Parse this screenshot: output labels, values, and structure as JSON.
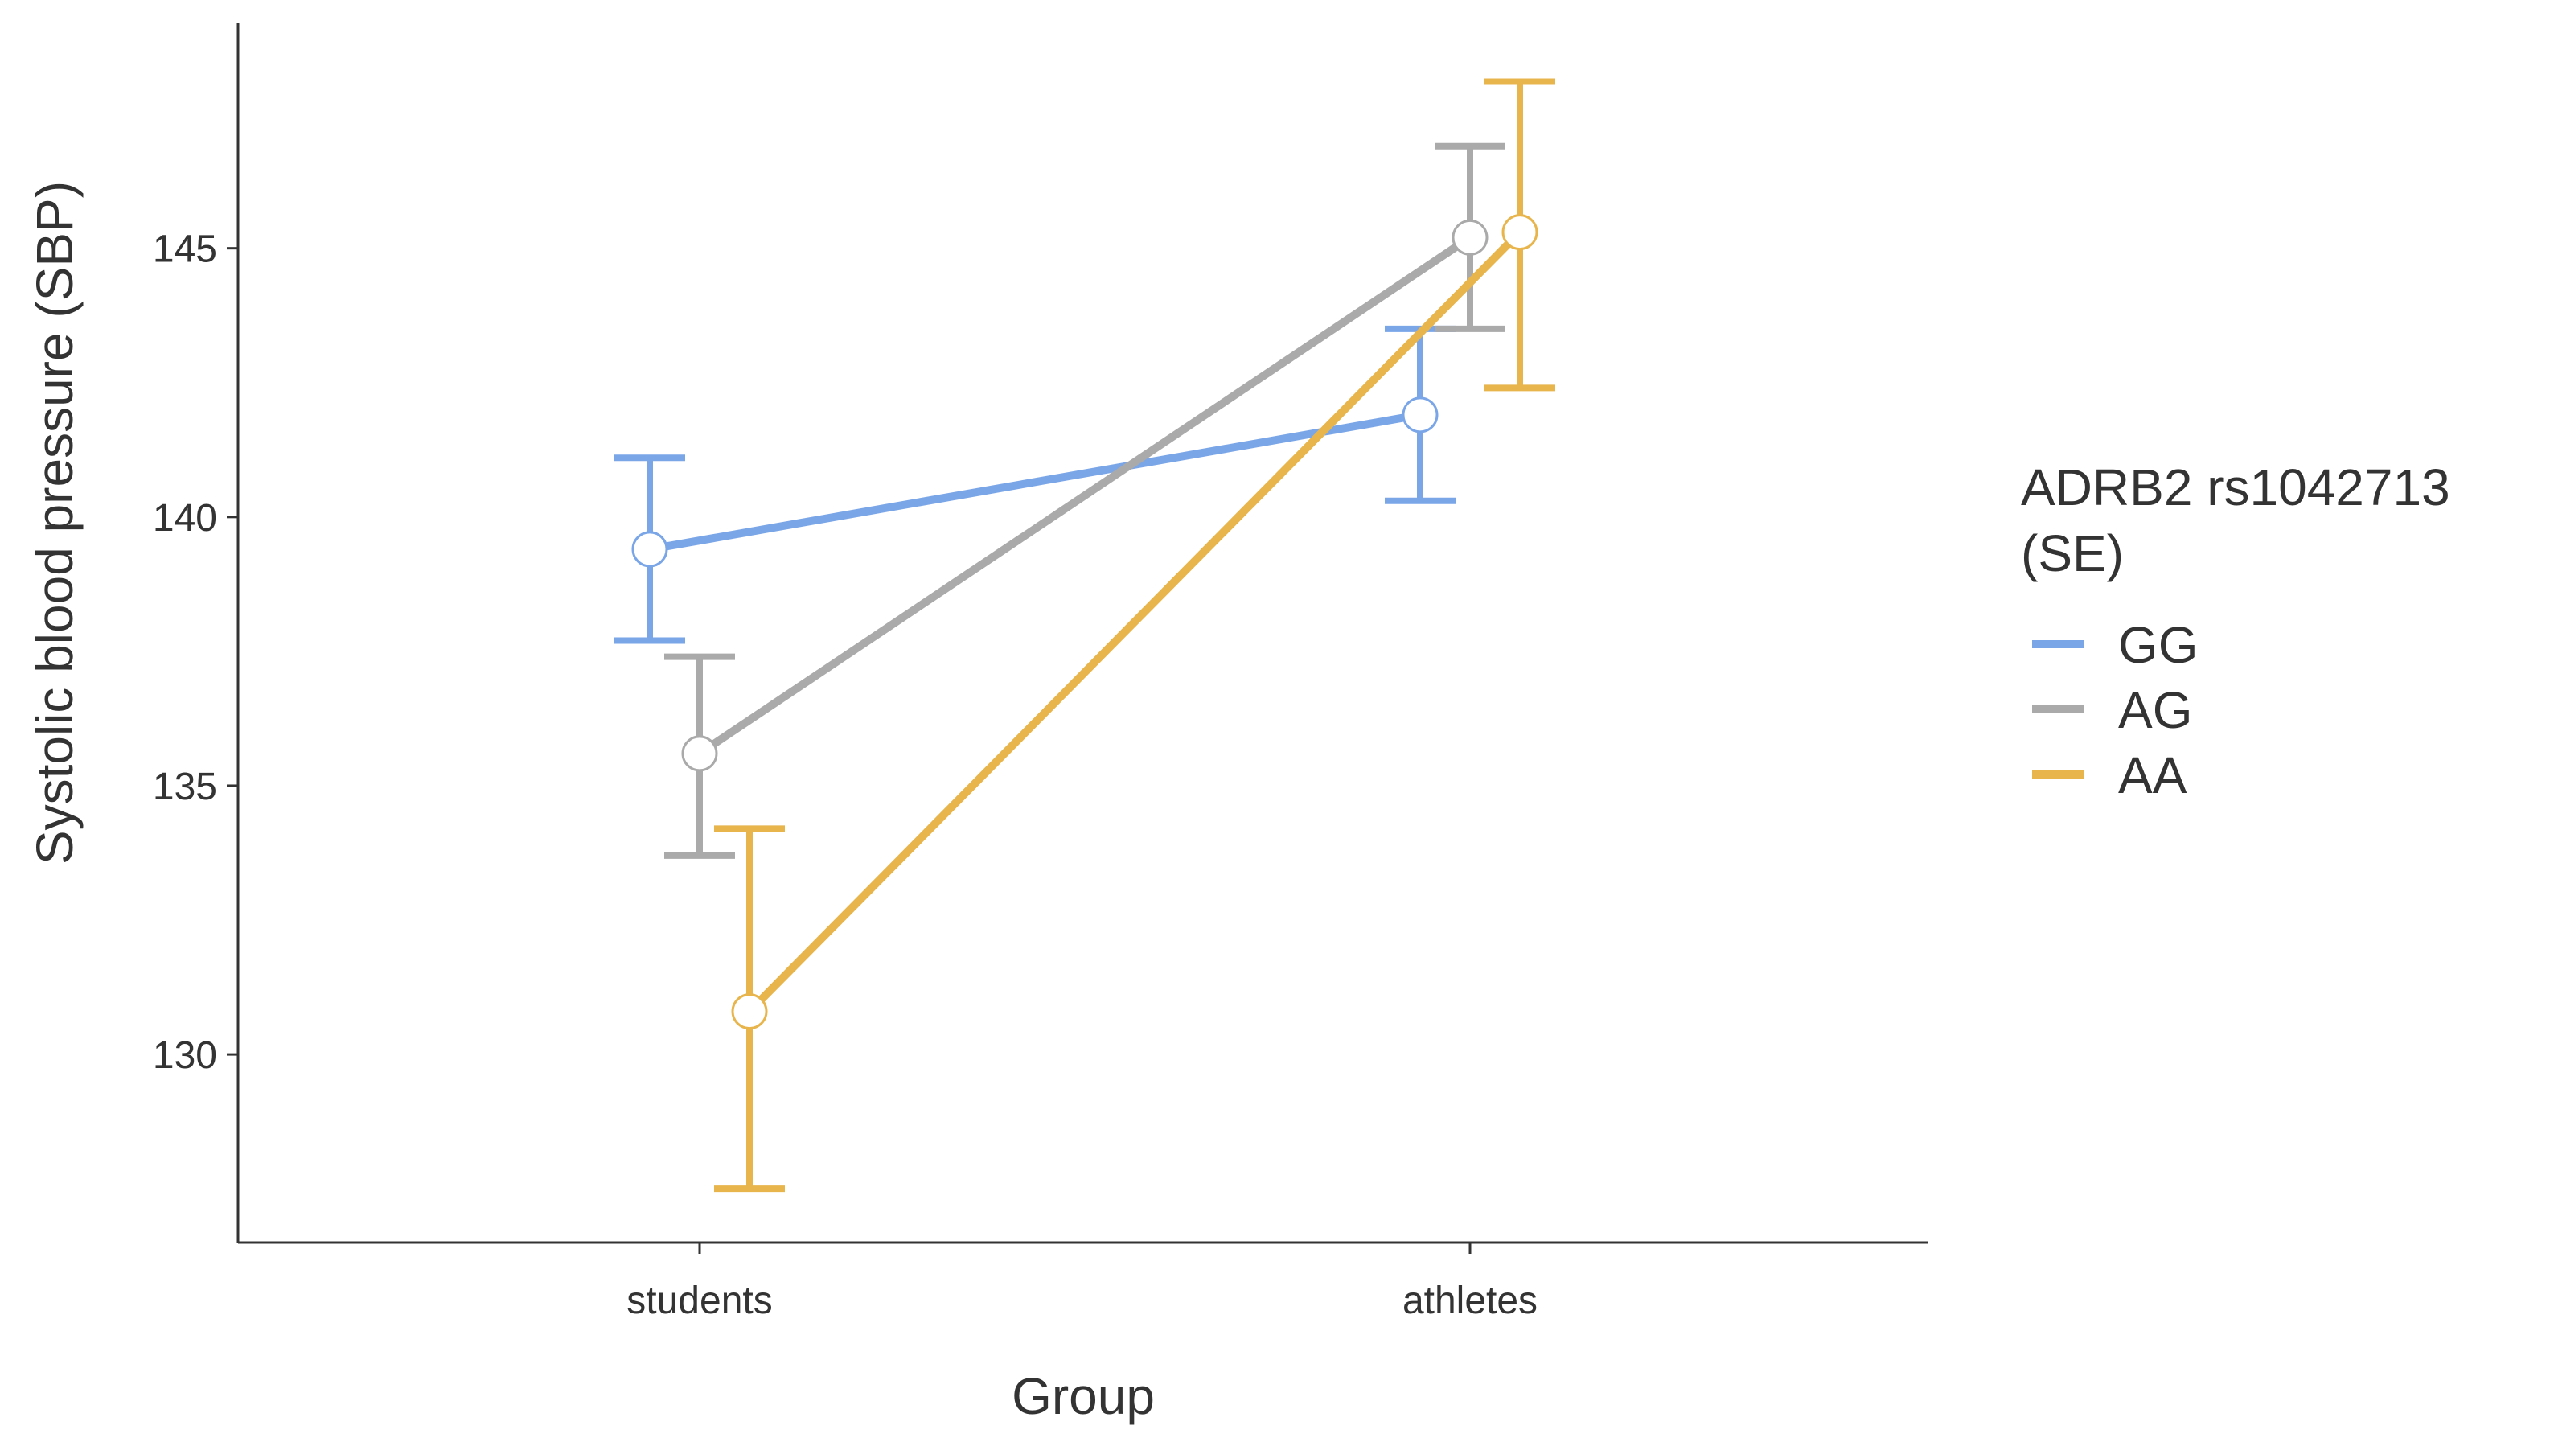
{
  "chart_data": {
    "type": "line",
    "xlabel": "Group",
    "ylabel": "Systolic blood pressure (SBP)",
    "categories": [
      "students",
      "athletes"
    ],
    "yticks": [
      130,
      135,
      140,
      145
    ],
    "ylim": [
      126.5,
      149.2
    ],
    "grid": false,
    "legend": {
      "title_lines": [
        "ADRB2 rs1042713",
        "(SE)"
      ],
      "position": "right"
    },
    "series": [
      {
        "name": "GG",
        "color": "#7aa6e8",
        "values": [
          139.4,
          141.9
        ],
        "se_low": [
          137.7,
          140.3
        ],
        "se_high": [
          141.1,
          143.5
        ]
      },
      {
        "name": "AG",
        "color": "#aaaaaa",
        "values": [
          135.6,
          145.2
        ],
        "se_low": [
          133.7,
          143.5
        ],
        "se_high": [
          137.4,
          146.9
        ]
      },
      {
        "name": "AA",
        "color": "#e8b54d",
        "values": [
          130.8,
          145.3
        ],
        "se_low": [
          127.5,
          142.4
        ],
        "se_high": [
          134.2,
          148.1
        ]
      }
    ]
  }
}
